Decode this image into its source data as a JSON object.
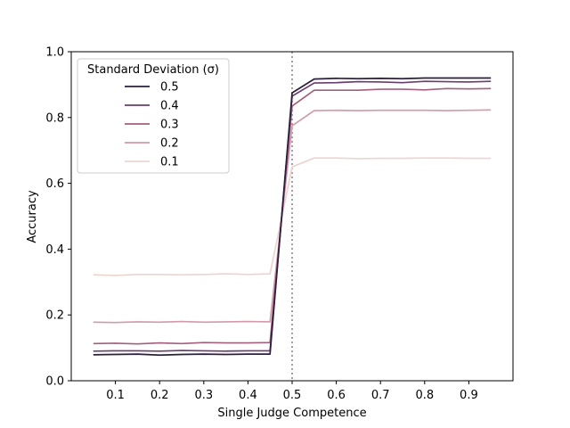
{
  "chart_data": {
    "type": "line",
    "xlabel": "Single Judge Competence",
    "ylabel": "Accuracy",
    "xlim": [
      0.0,
      1.0
    ],
    "ylim": [
      0.0,
      1.0
    ],
    "xticks": [
      "0.1",
      "0.2",
      "0.3",
      "0.4",
      "0.5",
      "0.6",
      "0.7",
      "0.8",
      "0.9"
    ],
    "yticks": [
      "0.0",
      "0.2",
      "0.4",
      "0.6",
      "0.8",
      "1.0"
    ],
    "grid": false,
    "legend_position": "top-left",
    "legend_title": "Standard Deviation (σ)",
    "vline": {
      "x": 0.5,
      "style": "dotted",
      "color": "#808080"
    },
    "x": [
      0.05,
      0.1,
      0.15,
      0.2,
      0.25,
      0.3,
      0.35,
      0.4,
      0.45,
      0.5,
      0.55,
      0.6,
      0.65,
      0.7,
      0.75,
      0.8,
      0.85,
      0.9,
      0.95
    ],
    "series": [
      {
        "name": "0.5",
        "color": "#2d1e3e",
        "values": [
          0.079,
          0.08,
          0.081,
          0.078,
          0.08,
          0.081,
          0.08,
          0.081,
          0.081,
          0.875,
          0.917,
          0.919,
          0.918,
          0.919,
          0.918,
          0.92,
          0.92,
          0.92,
          0.92
        ]
      },
      {
        "name": "0.4",
        "color": "#6a3d6e",
        "values": [
          0.09,
          0.091,
          0.091,
          0.09,
          0.092,
          0.091,
          0.09,
          0.091,
          0.091,
          0.865,
          0.905,
          0.906,
          0.909,
          0.908,
          0.906,
          0.91,
          0.909,
          0.908,
          0.91
        ]
      },
      {
        "name": "0.3",
        "color": "#a2607f",
        "values": [
          0.113,
          0.114,
          0.112,
          0.115,
          0.113,
          0.116,
          0.115,
          0.115,
          0.116,
          0.835,
          0.883,
          0.883,
          0.883,
          0.886,
          0.886,
          0.884,
          0.888,
          0.887,
          0.888
        ]
      },
      {
        "name": "0.2",
        "color": "#d39aa8",
        "values": [
          0.178,
          0.177,
          0.179,
          0.178,
          0.18,
          0.178,
          0.179,
          0.18,
          0.179,
          0.775,
          0.821,
          0.822,
          0.821,
          0.822,
          0.822,
          0.822,
          0.821,
          0.822,
          0.823
        ]
      },
      {
        "name": "0.1",
        "color": "#ecd4d1",
        "values": [
          0.322,
          0.32,
          0.323,
          0.323,
          0.322,
          0.323,
          0.325,
          0.323,
          0.325,
          0.65,
          0.677,
          0.677,
          0.675,
          0.676,
          0.676,
          0.677,
          0.677,
          0.676,
          0.676
        ]
      }
    ]
  }
}
